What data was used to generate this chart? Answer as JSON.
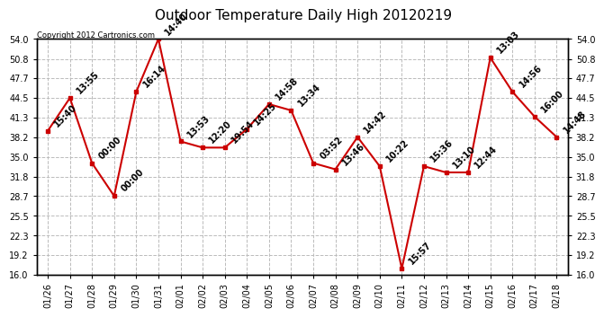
{
  "title": "Outdoor Temperature Daily High 20120219",
  "copyright": "Copyright 2012 Cartronics.com",
  "x_labels": [
    "01/26",
    "01/27",
    "01/28",
    "01/29",
    "01/30",
    "01/31",
    "02/01",
    "02/02",
    "02/03",
    "02/04",
    "02/05",
    "02/06",
    "02/07",
    "02/08",
    "02/09",
    "02/10",
    "02/11",
    "02/12",
    "02/13",
    "02/14",
    "02/15",
    "02/16",
    "02/17",
    "02/18"
  ],
  "y_values": [
    39.2,
    44.5,
    34.0,
    28.7,
    45.5,
    54.0,
    37.5,
    36.5,
    36.5,
    39.5,
    43.5,
    42.5,
    34.0,
    33.0,
    38.2,
    33.5,
    17.0,
    33.5,
    32.5,
    32.5,
    51.0,
    45.5,
    41.5,
    38.2
  ],
  "time_labels": [
    "15:40",
    "13:55",
    "00:00",
    "00:00",
    "16:14",
    "14:40",
    "13:53",
    "12:20",
    "19:54",
    "14:25",
    "14:58",
    "13:34",
    "03:52",
    "13:46",
    "14:42",
    "10:22",
    "15:57",
    "15:36",
    "13:10",
    "12:44",
    "13:03",
    "14:56",
    "16:00",
    "14:48"
  ],
  "ylim": [
    16.0,
    54.0
  ],
  "yticks": [
    16.0,
    19.2,
    22.3,
    25.5,
    28.7,
    31.8,
    35.0,
    38.2,
    41.3,
    44.5,
    47.7,
    50.8,
    54.0
  ],
  "line_color": "#cc0000",
  "marker_color": "#cc0000",
  "background_color": "#ffffff",
  "grid_color": "#bbbbbb",
  "title_fontsize": 11,
  "label_fontsize": 7,
  "annotation_fontsize": 7,
  "copyright_fontsize": 6
}
